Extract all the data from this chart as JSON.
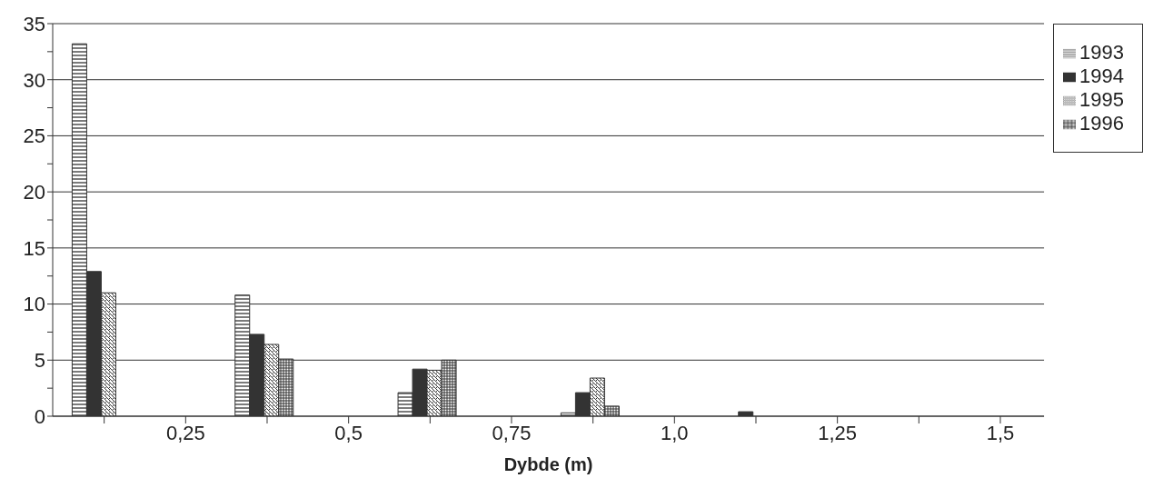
{
  "chart_data": {
    "type": "bar",
    "xlabel": "Dybde (m)",
    "x": [
      0.12,
      0.37,
      0.62,
      0.87,
      1.12
    ],
    "series": [
      {
        "name": "1993",
        "color": "#333333",
        "values": [
          33.2,
          10.8,
          2.1,
          0.3,
          0
        ]
      },
      {
        "name": "1994",
        "color": "#333333",
        "values": [
          12.9,
          7.3,
          4.2,
          2.1,
          0.4
        ]
      },
      {
        "name": "1995",
        "color": "#333333",
        "values": [
          11,
          6.4,
          4.1,
          3.4,
          0
        ]
      },
      {
        "name": "1996",
        "color": "#333333",
        "values": [
          0,
          5.1,
          5,
          0.9,
          0
        ]
      }
    ],
    "xlim": [
      0.046,
      1.567
    ],
    "xticks": [
      {
        "value": 0.125,
        "label": null
      },
      {
        "value": 0.25,
        "label": "0,25"
      },
      {
        "value": 0.375,
        "label": null
      },
      {
        "value": 0.5,
        "label": "0,5"
      },
      {
        "value": 0.625,
        "label": null
      },
      {
        "value": 0.75,
        "label": "0,75"
      },
      {
        "value": 0.875,
        "label": null
      },
      {
        "value": 1.0,
        "label": "1,0"
      },
      {
        "value": 1.125,
        "label": null
      },
      {
        "value": 1.25,
        "label": "1,25"
      },
      {
        "value": 1.375,
        "label": null
      },
      {
        "value": 1.5,
        "label": "1,5"
      }
    ],
    "ylim": [
      0,
      35
    ],
    "yticks": [
      0,
      {
        "value": 2.5,
        "label": null
      },
      5,
      {
        "value": 7.5,
        "label": null
      },
      10,
      {
        "value": 12.5,
        "label": null
      },
      15,
      {
        "value": 17.5,
        "label": null
      },
      20,
      {
        "value": 22.5,
        "label": null
      },
      25,
      {
        "value": 27.5,
        "label": null
      },
      30,
      {
        "value": 32.5,
        "label": null
      },
      35
    ],
    "grid": "y",
    "legend": "top right"
  }
}
